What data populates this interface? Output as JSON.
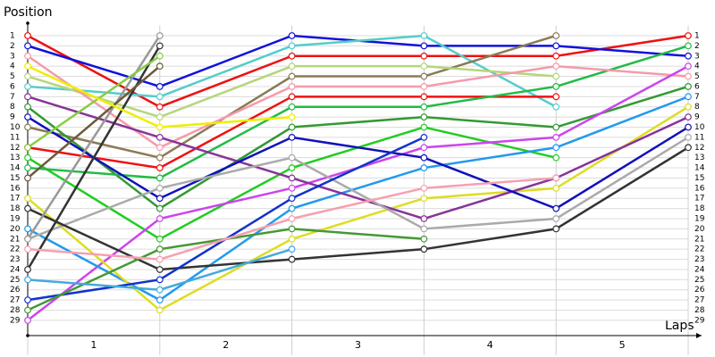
{
  "chart_data": {
    "type": "line",
    "ylabel": "Position",
    "xlabel": "Laps",
    "x": [
      0,
      1,
      2,
      3,
      4,
      5
    ],
    "xlim": [
      0,
      5
    ],
    "xticks": [
      {
        "value": 0.5,
        "label": "1"
      },
      {
        "value": 1.5,
        "label": "2"
      },
      {
        "value": 2.5,
        "label": "3"
      },
      {
        "value": 3.5,
        "label": "4"
      },
      {
        "value": 4.5,
        "label": "5"
      }
    ],
    "ylim": [
      0,
      30.5
    ],
    "y_inverted": true,
    "yticks": [
      1,
      2,
      3,
      4,
      5,
      6,
      7,
      8,
      9,
      10,
      11,
      12,
      13,
      14,
      15,
      16,
      17,
      18,
      19,
      20,
      21,
      22,
      23,
      24,
      25,
      26,
      27,
      28,
      29
    ],
    "grid": true,
    "series": [
      {
        "color": "#ee1111",
        "values": [
          1,
          8,
          3,
          3,
          3,
          1
        ]
      },
      {
        "color": "#1111dd",
        "values": [
          2,
          6,
          1,
          2,
          2,
          3
        ]
      },
      {
        "color": "#55cccc",
        "values": [
          6,
          7,
          2,
          1,
          8,
          null
        ]
      },
      {
        "color": "#8b7a55",
        "values": [
          10,
          13,
          5,
          5,
          1,
          null
        ]
      },
      {
        "color": "#b5d67a",
        "values": [
          5,
          9,
          4,
          4,
          5,
          null
        ]
      },
      {
        "color": "#ee1111",
        "values": [
          12,
          14,
          7,
          7,
          7,
          null
        ]
      },
      {
        "color": "#339933",
        "values": [
          8,
          18,
          10,
          9,
          10,
          6
        ]
      },
      {
        "color": "#22cc22",
        "values": [
          13,
          21,
          14,
          10,
          13,
          null
        ]
      },
      {
        "color": "#22bb44",
        "values": [
          14,
          15,
          8,
          8,
          6,
          2
        ]
      },
      {
        "color": "#f59aaa",
        "values": [
          3,
          12,
          6,
          6,
          4,
          5
        ]
      },
      {
        "color": "#cc44ee",
        "values": [
          29,
          19,
          16,
          12,
          11,
          4
        ]
      },
      {
        "color": "#2299ee",
        "values": [
          20,
          27,
          18,
          14,
          12,
          7
        ]
      },
      {
        "color": "#dddd22",
        "values": [
          17,
          28,
          21,
          17,
          16,
          8
        ]
      },
      {
        "color": "#883399",
        "values": [
          7,
          11,
          15,
          19,
          15,
          9
        ]
      },
      {
        "color": "#1111bb",
        "values": [
          9,
          17,
          11,
          13,
          18,
          10
        ]
      },
      {
        "color": "#aaaaaa",
        "values": [
          21,
          16,
          13,
          20,
          19,
          11
        ]
      },
      {
        "color": "#333333",
        "values": [
          18,
          24,
          23,
          22,
          20,
          12
        ]
      },
      {
        "color": "#333333",
        "values": [
          24,
          2,
          null,
          null,
          null,
          null
        ]
      },
      {
        "color": "#999999",
        "values": [
          21,
          1,
          null,
          null,
          null,
          null
        ]
      },
      {
        "color": "#88cc44",
        "values": [
          12,
          3,
          null,
          null,
          null,
          null
        ]
      },
      {
        "color": "#6b5a3a",
        "values": [
          15,
          4,
          null,
          null,
          null,
          null
        ]
      },
      {
        "color": "#1133cc",
        "values": [
          27,
          25,
          17,
          11,
          null,
          null
        ]
      },
      {
        "color": "#449933",
        "values": [
          28,
          22,
          20,
          21,
          null,
          null
        ]
      },
      {
        "color": "#44aadd",
        "values": [
          25,
          26,
          22,
          null,
          null,
          null
        ]
      },
      {
        "color": "#f5a0b0",
        "values": [
          22,
          23,
          19,
          16,
          15,
          null
        ]
      },
      {
        "color": "#eeee00",
        "values": [
          4,
          10,
          9,
          null,
          null,
          null
        ]
      }
    ]
  }
}
